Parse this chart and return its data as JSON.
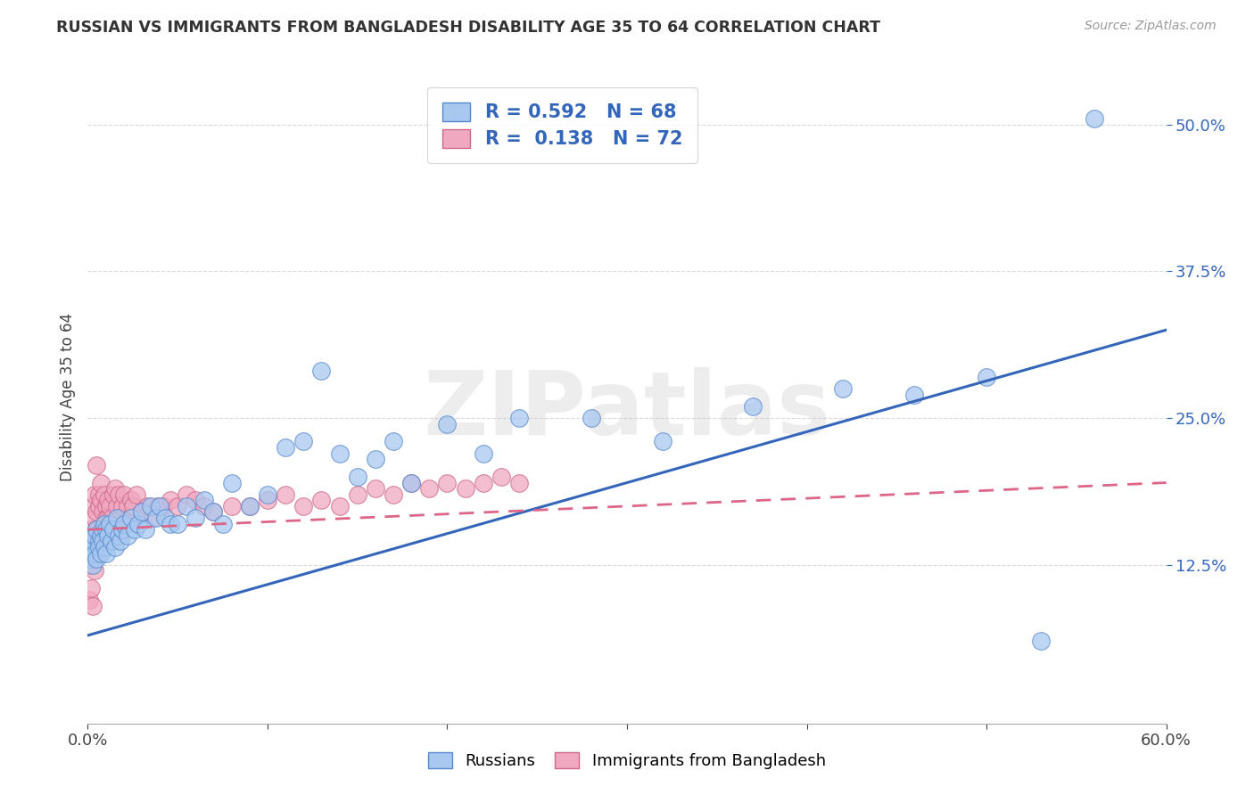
{
  "title": "RUSSIAN VS IMMIGRANTS FROM BANGLADESH DISABILITY AGE 35 TO 64 CORRELATION CHART",
  "source": "Source: ZipAtlas.com",
  "ylabel": "Disability Age 35 to 64",
  "xlim": [
    0.0,
    0.6
  ],
  "ylim": [
    -0.01,
    0.545
  ],
  "xticks": [
    0.0,
    0.1,
    0.2,
    0.3,
    0.4,
    0.5,
    0.6
  ],
  "xticklabels": [
    "0.0%",
    "",
    "",
    "",
    "",
    "",
    "60.0%"
  ],
  "yticks": [
    0.125,
    0.25,
    0.375,
    0.5
  ],
  "yticklabels": [
    "12.5%",
    "25.0%",
    "37.5%",
    "50.0%"
  ],
  "grid_color": "#d9d9d9",
  "background_color": "#ffffff",
  "watermark": "ZIPatlas",
  "blue_color": "#a8c8f0",
  "pink_color": "#f0a8c0",
  "blue_edge_color": "#5588cc",
  "pink_edge_color": "#cc6688",
  "blue_line_color": "#3366bb",
  "pink_line_color": "#dd6688",
  "R_blue": 0.592,
  "N_blue": 68,
  "R_pink": 0.138,
  "N_pink": 72,
  "legend_labels": [
    "Russians",
    "Immigrants from Bangladesh"
  ],
  "russians_x": [
    0.001,
    0.002,
    0.002,
    0.003,
    0.003,
    0.004,
    0.004,
    0.005,
    0.005,
    0.006,
    0.006,
    0.007,
    0.007,
    0.008,
    0.008,
    0.009,
    0.009,
    0.01,
    0.01,
    0.011,
    0.012,
    0.013,
    0.014,
    0.015,
    0.016,
    0.017,
    0.018,
    0.019,
    0.02,
    0.022,
    0.024,
    0.026,
    0.028,
    0.03,
    0.032,
    0.035,
    0.038,
    0.04,
    0.043,
    0.046,
    0.05,
    0.055,
    0.06,
    0.065,
    0.07,
    0.075,
    0.08,
    0.09,
    0.1,
    0.11,
    0.12,
    0.13,
    0.14,
    0.15,
    0.16,
    0.17,
    0.18,
    0.2,
    0.22,
    0.24,
    0.28,
    0.32,
    0.37,
    0.42,
    0.46,
    0.5,
    0.53,
    0.56
  ],
  "russians_y": [
    0.135,
    0.14,
    0.13,
    0.145,
    0.125,
    0.15,
    0.135,
    0.155,
    0.13,
    0.145,
    0.14,
    0.15,
    0.135,
    0.155,
    0.145,
    0.16,
    0.14,
    0.155,
    0.135,
    0.15,
    0.16,
    0.145,
    0.155,
    0.14,
    0.165,
    0.15,
    0.145,
    0.155,
    0.16,
    0.15,
    0.165,
    0.155,
    0.16,
    0.17,
    0.155,
    0.175,
    0.165,
    0.175,
    0.165,
    0.16,
    0.16,
    0.175,
    0.165,
    0.18,
    0.17,
    0.16,
    0.195,
    0.175,
    0.185,
    0.225,
    0.23,
    0.29,
    0.22,
    0.2,
    0.215,
    0.23,
    0.195,
    0.245,
    0.22,
    0.25,
    0.25,
    0.23,
    0.26,
    0.275,
    0.27,
    0.285,
    0.06,
    0.505
  ],
  "bangladesh_x": [
    0.001,
    0.001,
    0.002,
    0.002,
    0.002,
    0.003,
    0.003,
    0.003,
    0.004,
    0.004,
    0.004,
    0.005,
    0.005,
    0.005,
    0.006,
    0.006,
    0.006,
    0.007,
    0.007,
    0.007,
    0.008,
    0.008,
    0.009,
    0.009,
    0.01,
    0.01,
    0.01,
    0.011,
    0.011,
    0.012,
    0.013,
    0.014,
    0.015,
    0.016,
    0.017,
    0.018,
    0.019,
    0.02,
    0.021,
    0.022,
    0.023,
    0.024,
    0.025,
    0.027,
    0.03,
    0.033,
    0.036,
    0.039,
    0.042,
    0.046,
    0.05,
    0.055,
    0.06,
    0.065,
    0.07,
    0.08,
    0.09,
    0.1,
    0.11,
    0.12,
    0.13,
    0.14,
    0.15,
    0.16,
    0.17,
    0.18,
    0.19,
    0.2,
    0.21,
    0.22,
    0.23,
    0.24
  ],
  "bangladesh_y": [
    0.125,
    0.095,
    0.155,
    0.14,
    0.105,
    0.175,
    0.15,
    0.09,
    0.165,
    0.185,
    0.12,
    0.21,
    0.155,
    0.17,
    0.185,
    0.145,
    0.175,
    0.18,
    0.155,
    0.195,
    0.17,
    0.145,
    0.185,
    0.155,
    0.175,
    0.165,
    0.145,
    0.18,
    0.165,
    0.175,
    0.165,
    0.185,
    0.19,
    0.175,
    0.185,
    0.165,
    0.175,
    0.185,
    0.16,
    0.175,
    0.165,
    0.18,
    0.175,
    0.185,
    0.17,
    0.175,
    0.165,
    0.175,
    0.175,
    0.18,
    0.175,
    0.185,
    0.18,
    0.175,
    0.17,
    0.175,
    0.175,
    0.18,
    0.185,
    0.175,
    0.18,
    0.175,
    0.185,
    0.19,
    0.185,
    0.195,
    0.19,
    0.195,
    0.19,
    0.195,
    0.2,
    0.195
  ],
  "blue_trend_x": [
    0.0,
    0.6
  ],
  "blue_trend_y": [
    0.065,
    0.325
  ],
  "pink_trend_x": [
    0.0,
    0.6
  ],
  "pink_trend_y": [
    0.155,
    0.195
  ]
}
